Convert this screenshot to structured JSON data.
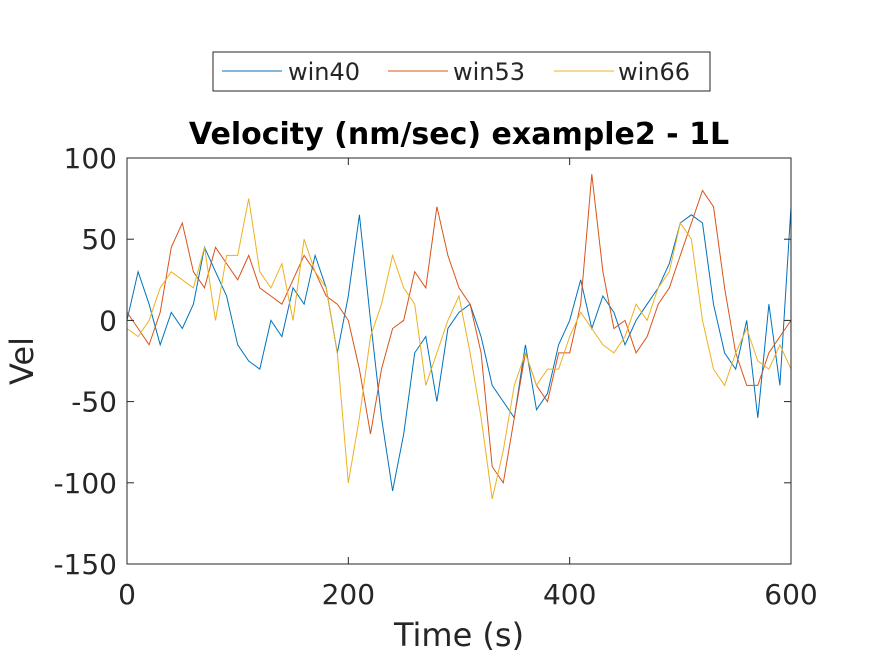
{
  "chart_data": {
    "type": "line",
    "title": "Velocity (nm/sec) example2 - 1L",
    "xlabel": "Time (s)",
    "ylabel": "Vel",
    "xlim": [
      0,
      600
    ],
    "ylim": [
      -150,
      100
    ],
    "xticks": [
      0,
      200,
      400,
      600
    ],
    "yticks": [
      100,
      50,
      0,
      -50,
      -100,
      -150
    ],
    "xtick_labels": [
      "0",
      "200",
      "400",
      "600"
    ],
    "ytick_labels": [
      "100",
      "50",
      "0",
      "-50",
      "-100",
      "-150"
    ],
    "grid": false,
    "legend": {
      "position": "top",
      "orientation": "horizontal"
    },
    "series": [
      {
        "name": "win40",
        "color": "#0072BD",
        "x": [
          0,
          10,
          20,
          30,
          40,
          50,
          60,
          70,
          80,
          90,
          100,
          110,
          120,
          130,
          140,
          150,
          160,
          170,
          180,
          190,
          200,
          210,
          220,
          230,
          240,
          250,
          260,
          270,
          280,
          290,
          300,
          310,
          320,
          330,
          340,
          350,
          360,
          370,
          380,
          390,
          400,
          410,
          420,
          430,
          440,
          450,
          460,
          470,
          480,
          490,
          500,
          510,
          520,
          530,
          540,
          550,
          560,
          570,
          580,
          590,
          600
        ],
        "values": [
          0,
          30,
          10,
          -15,
          5,
          -5,
          10,
          45,
          30,
          15,
          -15,
          -25,
          -30,
          0,
          -10,
          20,
          10,
          40,
          20,
          -20,
          15,
          65,
          0,
          -60,
          -105,
          -70,
          -20,
          -10,
          -50,
          -5,
          5,
          10,
          -10,
          -40,
          -50,
          -60,
          -15,
          -55,
          -45,
          -15,
          0,
          25,
          -5,
          15,
          5,
          -15,
          0,
          10,
          20,
          35,
          60,
          65,
          60,
          10,
          -20,
          -30,
          0,
          -60,
          10,
          -40,
          70
        ]
      },
      {
        "name": "win53",
        "color": "#D95319",
        "x": [
          0,
          10,
          20,
          30,
          40,
          50,
          60,
          70,
          80,
          90,
          100,
          110,
          120,
          130,
          140,
          150,
          160,
          170,
          180,
          190,
          200,
          210,
          220,
          230,
          240,
          250,
          260,
          270,
          280,
          290,
          300,
          310,
          320,
          330,
          340,
          350,
          360,
          370,
          380,
          390,
          400,
          410,
          420,
          430,
          440,
          450,
          460,
          470,
          480,
          490,
          500,
          510,
          520,
          530,
          540,
          550,
          560,
          570,
          580,
          590,
          600
        ],
        "values": [
          5,
          -5,
          -15,
          5,
          45,
          60,
          30,
          20,
          45,
          35,
          25,
          40,
          20,
          15,
          10,
          25,
          40,
          30,
          15,
          10,
          0,
          -30,
          -70,
          -30,
          -5,
          0,
          30,
          20,
          70,
          40,
          20,
          10,
          -20,
          -90,
          -100,
          -60,
          -20,
          -40,
          -50,
          -20,
          -20,
          10,
          90,
          30,
          -5,
          0,
          -20,
          -10,
          10,
          20,
          40,
          60,
          80,
          70,
          20,
          -20,
          -40,
          -40,
          -20,
          -10,
          0
        ]
      },
      {
        "name": "win66",
        "color": "#EDB120",
        "x": [
          0,
          10,
          20,
          30,
          40,
          50,
          60,
          70,
          80,
          90,
          100,
          110,
          120,
          130,
          140,
          150,
          160,
          170,
          180,
          190,
          200,
          210,
          220,
          230,
          240,
          250,
          260,
          270,
          280,
          290,
          300,
          310,
          320,
          330,
          340,
          350,
          360,
          370,
          380,
          390,
          400,
          410,
          420,
          430,
          440,
          450,
          460,
          470,
          480,
          490,
          500,
          510,
          520,
          530,
          540,
          550,
          560,
          570,
          580,
          590,
          600
        ],
        "values": [
          -5,
          -10,
          0,
          20,
          30,
          25,
          20,
          45,
          0,
          40,
          40,
          75,
          30,
          20,
          35,
          0,
          50,
          30,
          20,
          -20,
          -100,
          -60,
          -10,
          10,
          40,
          20,
          10,
          -40,
          -20,
          0,
          15,
          -20,
          -60,
          -110,
          -80,
          -40,
          -20,
          -40,
          -30,
          -30,
          -10,
          5,
          -5,
          -15,
          -20,
          -10,
          10,
          0,
          20,
          30,
          60,
          50,
          0,
          -30,
          -40,
          -20,
          -5,
          -25,
          -30,
          -15,
          -30
        ]
      }
    ]
  }
}
